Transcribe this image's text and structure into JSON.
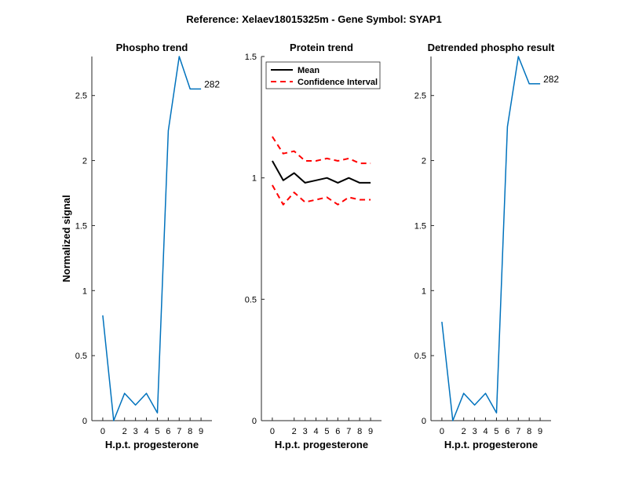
{
  "figure": {
    "title": "Reference:  Xelaev18015325m - Gene Symbol:  SYAP1"
  },
  "chart_data": [
    {
      "type": "line",
      "title": "Phospho trend",
      "xlabel": "H.p.t. progesterone",
      "ylabel": "Normalized signal",
      "x": [
        0,
        1,
        2,
        3,
        4,
        5,
        6,
        7,
        8,
        9
      ],
      "xticklabels": [
        "0",
        "2",
        "3",
        "4",
        "5",
        "6",
        "7",
        "8",
        "9"
      ],
      "ylim": [
        0,
        2.8
      ],
      "yticks": [
        0,
        0.5,
        1,
        1.5,
        2,
        2.5
      ],
      "yticklabels": [
        "0",
        "0.5",
        "1",
        "1.5",
        "2",
        "2.5"
      ],
      "grid": false,
      "series": [
        {
          "values": [
            0.81,
            0.0,
            0.21,
            0.12,
            0.21,
            0.06,
            2.23,
            2.8,
            2.55,
            2.55
          ],
          "color": "#0072BD"
        }
      ],
      "end_label": "282"
    },
    {
      "type": "line",
      "title": "Protein trend",
      "xlabel": "H.p.t. progesterone",
      "ylabel": "",
      "x": [
        0,
        1,
        2,
        3,
        4,
        5,
        6,
        7,
        8,
        9
      ],
      "xticklabels": [
        "0",
        "2",
        "3",
        "4",
        "5",
        "6",
        "7",
        "8",
        "9"
      ],
      "ylim": [
        0,
        1.5
      ],
      "yticks": [
        0,
        0.5,
        1,
        1.5
      ],
      "yticklabels": [
        "0",
        "0.5",
        "1",
        "1.5"
      ],
      "grid": false,
      "legend": {
        "position": "top-left",
        "entries": [
          "Mean",
          "Confidence Interval"
        ]
      },
      "series": [
        {
          "name": "Mean",
          "values": [
            1.07,
            0.99,
            1.02,
            0.98,
            0.99,
            1.0,
            0.98,
            1.0,
            0.98,
            0.98
          ],
          "color": "#000000",
          "style": "solid"
        },
        {
          "name": "Confidence Interval",
          "values": [
            1.17,
            1.1,
            1.11,
            1.07,
            1.07,
            1.08,
            1.07,
            1.08,
            1.06,
            1.06
          ],
          "color": "#FF0000",
          "style": "dashed"
        },
        {
          "name": "Confidence Interval",
          "values": [
            0.97,
            0.89,
            0.94,
            0.9,
            0.91,
            0.92,
            0.89,
            0.92,
            0.91,
            0.91
          ],
          "color": "#FF0000",
          "style": "dashed"
        }
      ]
    },
    {
      "type": "line",
      "title": "Detrended phospho result",
      "xlabel": "H.p.t. progesterone",
      "ylabel": "",
      "x": [
        0,
        1,
        2,
        3,
        4,
        5,
        6,
        7,
        8,
        9
      ],
      "xticklabels": [
        "0",
        "2",
        "3",
        "4",
        "5",
        "6",
        "7",
        "8",
        "9"
      ],
      "ylim": [
        0,
        2.8
      ],
      "yticks": [
        0,
        0.5,
        1,
        1.5,
        2,
        2.5
      ],
      "yticklabels": [
        "0",
        "0.5",
        "1",
        "1.5",
        "2",
        "2.5"
      ],
      "grid": false,
      "series": [
        {
          "values": [
            0.76,
            0.0,
            0.21,
            0.12,
            0.21,
            0.06,
            2.26,
            2.8,
            2.59,
            2.59
          ],
          "color": "#0072BD"
        }
      ],
      "end_label": "282"
    }
  ]
}
